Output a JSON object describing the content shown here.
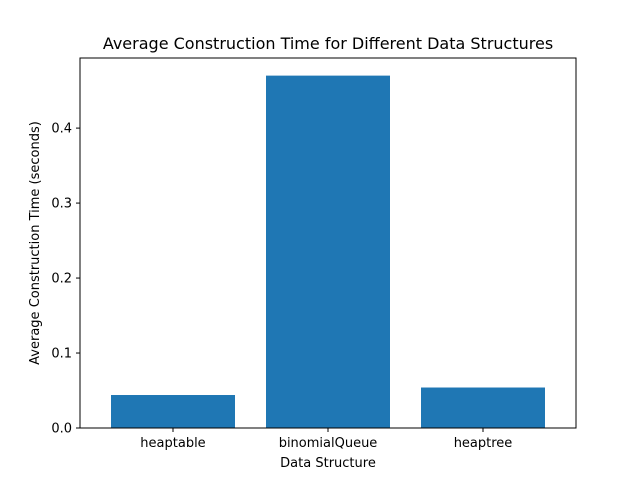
{
  "chart_data": {
    "type": "bar",
    "title": "Average Construction Time for Different Data Structures",
    "xlabel": "Data Structure",
    "ylabel": "Average Construction Time (seconds)",
    "categories": [
      "heaptable",
      "binomialQueue",
      "heaptree"
    ],
    "values": [
      0.044,
      0.47,
      0.054
    ],
    "ylim": [
      0,
      0.4935
    ],
    "yticks": [
      0.0,
      0.1,
      0.2,
      0.3,
      0.4
    ],
    "ytick_labels": [
      "0.0",
      "0.1",
      "0.2",
      "0.3",
      "0.4"
    ],
    "bar_color": "#1f77b4",
    "grid": false,
    "legend": "none"
  }
}
